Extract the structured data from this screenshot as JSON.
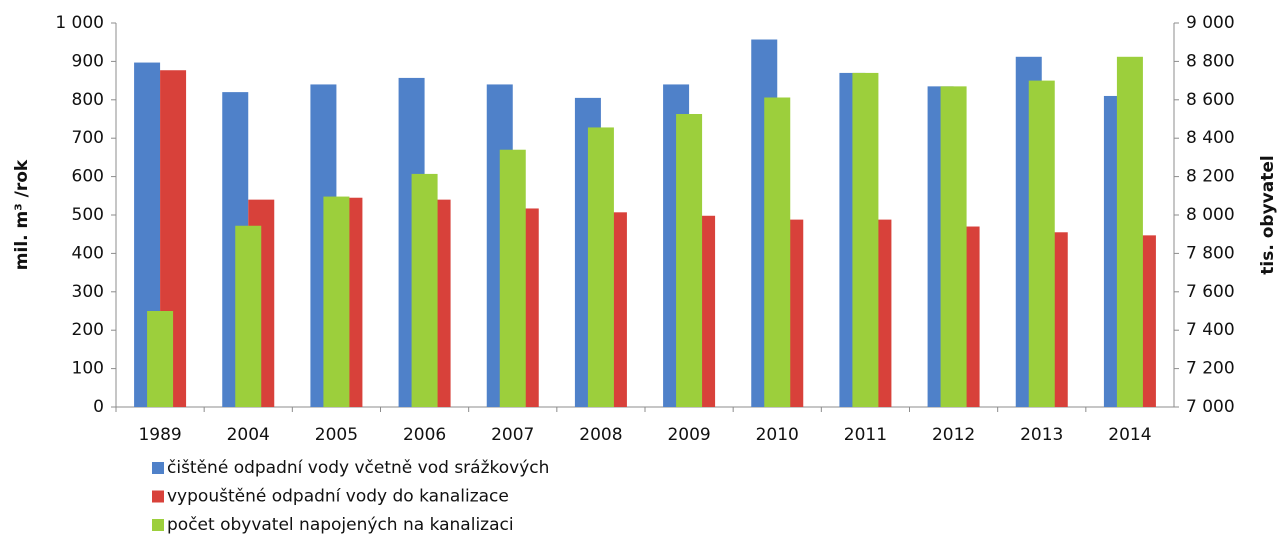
{
  "chart_data": {
    "type": "bar",
    "categories": [
      "1989",
      "2004",
      "2005",
      "2006",
      "2007",
      "2008",
      "2009",
      "2010",
      "2011",
      "2012",
      "2013",
      "2014"
    ],
    "series": [
      {
        "name": "čištěné odpadní vody včetně vod srážkových",
        "color": "#4f81c9",
        "values": [
          897,
          820,
          840,
          857,
          840,
          805,
          840,
          957,
          870,
          835,
          912,
          810
        ]
      },
      {
        "name": "vypouštěné odpadní vody do kanalizace",
        "color": "#d8413a",
        "values": [
          877,
          540,
          545,
          540,
          517,
          507,
          498,
          488,
          488,
          470,
          455,
          447
        ]
      },
      {
        "name": "počet obyvatel napojených na kanalizaci",
        "color": "#9ccf3c",
        "axis": "y2",
        "values": [
          7500,
          7944,
          8096,
          8214,
          8340,
          8456,
          8526,
          8612,
          8740,
          8670,
          8700,
          8824
        ]
      }
    ],
    "y_label": "mil. m³ /rok",
    "y2_label": "tis. obyvatel",
    "ylim": [
      0,
      1000
    ],
    "yticks": [
      0,
      100,
      200,
      300,
      400,
      500,
      600,
      700,
      800,
      900,
      {
        "value": 1000,
        "label": "1 000"
      }
    ],
    "y2lim": [
      7000,
      9000
    ],
    "y2ticks": [
      {
        "value": 7000,
        "label": "7 000"
      },
      {
        "value": 7200,
        "label": "7 200"
      },
      {
        "value": 7400,
        "label": "7 400"
      },
      {
        "value": 7600,
        "label": "7 600"
      },
      {
        "value": 7800,
        "label": "7 800"
      },
      {
        "value": 8000,
        "label": "8 000"
      },
      {
        "value": 8200,
        "label": "8 200"
      },
      {
        "value": 8400,
        "label": "8 400"
      },
      {
        "value": 8600,
        "label": "8 600"
      },
      {
        "value": 8800,
        "label": "8 800"
      },
      {
        "value": 9000,
        "label": "9 000"
      }
    ],
    "grid": false,
    "legend": "bottom"
  }
}
